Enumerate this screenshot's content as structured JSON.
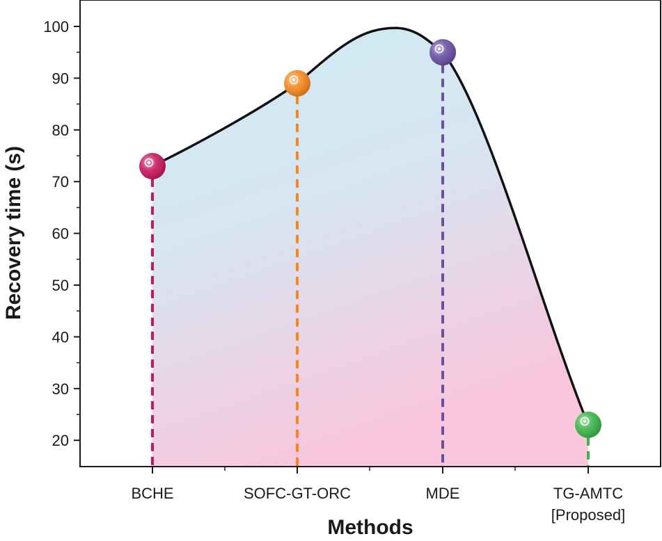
{
  "chart_data": {
    "type": "area",
    "title": "",
    "xlabel": "Methods",
    "ylabel": "Recovery time (s)",
    "categories": [
      "BCHE",
      "SOFC-GT-ORC",
      "MDE",
      "TG-AMTC\n[Proposed]"
    ],
    "series": [
      {
        "name": "Recovery time",
        "values": [
          73,
          89,
          95,
          23
        ],
        "marker_colors": [
          "#c8175d",
          "#f7861f",
          "#6b4fa2",
          "#3cb54a"
        ]
      }
    ],
    "ylim": [
      15,
      105
    ],
    "yticks": [
      20,
      30,
      40,
      50,
      60,
      70,
      80,
      90,
      100
    ],
    "grid": false,
    "legend": "none",
    "fill_colors": {
      "top": "#cfeaf4",
      "bottom": "#f9c6dc"
    },
    "line_color": "#111111"
  }
}
